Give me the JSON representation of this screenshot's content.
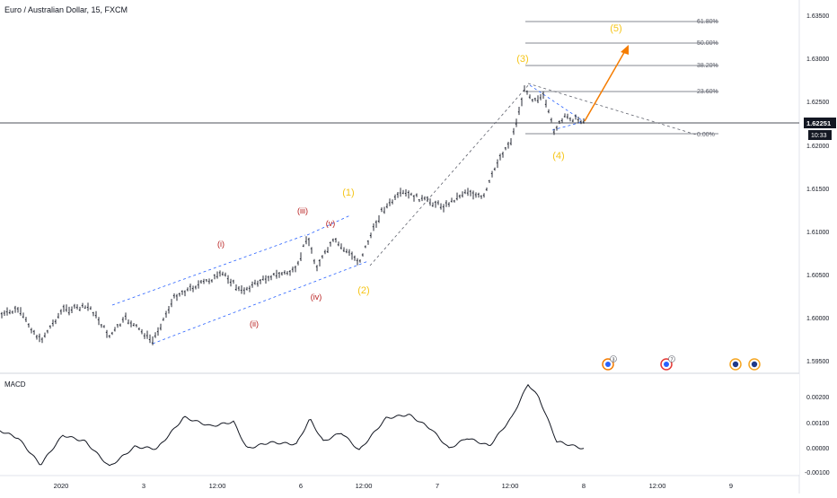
{
  "header": {
    "symbol_title": "Euro / Australian Dollar, 15, FXCM"
  },
  "price_axis": {
    "ticks": [
      "1.63500",
      "1.63000",
      "1.62500",
      "1.62000",
      "1.61500",
      "1.61000",
      "1.60500",
      "1.60000",
      "1.59500"
    ],
    "current_price": "1.62251",
    "countdown": "10:33"
  },
  "macd_panel": {
    "label": "MACD",
    "ticks": [
      "0.00200",
      "0.00100",
      "0.00000",
      "-0.00100"
    ]
  },
  "time_axis": {
    "ticks": [
      "2020",
      "3",
      "12:00",
      "6",
      "12:00",
      "7",
      "12:00",
      "8",
      "12:00",
      "9"
    ]
  },
  "fib_levels": [
    "61.80%",
    "50.00%",
    "38.20%",
    "23.60%",
    "0.00%"
  ],
  "wave_labels": {
    "major": [
      "(1)",
      "(2)",
      "(3)",
      "(4)",
      "(5)"
    ],
    "minor": [
      "(i)",
      "(ii)",
      "(iii)",
      "(iv)",
      "(v)"
    ]
  },
  "event_markers": [
    "3",
    "7",
    "",
    ""
  ],
  "colors": {
    "major_wave": "#f5c518",
    "minor_wave": "#b71c1c",
    "channel": "#2962ff",
    "projection_arrow": "#f57c00",
    "price_tag_bg": "#131722",
    "price_tag_text": "#ffffff",
    "bars": "#131722"
  }
}
